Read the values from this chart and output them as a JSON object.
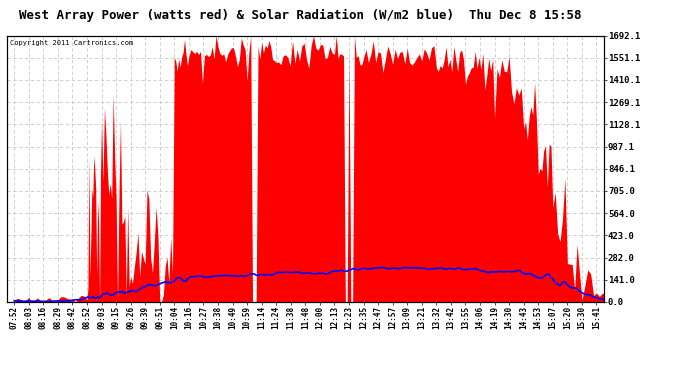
{
  "title": "West Array Power (watts red) & Solar Radiation (W/m2 blue)  Thu Dec 8 15:58",
  "copyright": "Copyright 2011 Cartronics.com",
  "bg_color": "#ffffff",
  "plot_bg_color": "#ffffff",
  "grid_color": "#c8c8c8",
  "red_color": "#ff0000",
  "blue_color": "#0000ff",
  "ymin": 0.0,
  "ymax": 1692.1,
  "yticks": [
    0.0,
    141.0,
    282.0,
    423.0,
    564.0,
    705.0,
    846.1,
    987.1,
    1128.1,
    1269.1,
    1410.1,
    1551.1,
    1692.1
  ],
  "xtick_labels": [
    "07:52",
    "08:03",
    "08:16",
    "08:29",
    "08:42",
    "08:52",
    "09:03",
    "09:15",
    "09:26",
    "09:39",
    "09:51",
    "10:04",
    "10:16",
    "10:27",
    "10:38",
    "10:49",
    "10:59",
    "11:14",
    "11:24",
    "11:38",
    "11:48",
    "12:00",
    "12:13",
    "12:23",
    "12:35",
    "12:47",
    "12:57",
    "13:09",
    "13:21",
    "13:32",
    "13:42",
    "13:55",
    "14:06",
    "14:19",
    "14:30",
    "14:43",
    "14:53",
    "15:07",
    "15:20",
    "15:30",
    "15:41"
  ],
  "n_xticks": 41,
  "title_fontsize": 9,
  "tick_fontsize": 5.5,
  "ytick_fontsize": 6.5
}
